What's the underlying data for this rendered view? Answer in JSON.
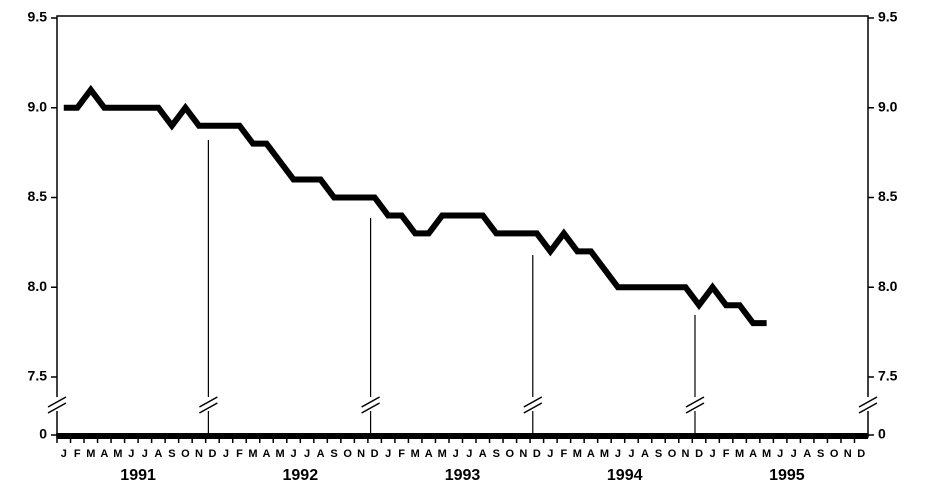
{
  "chart_data": {
    "type": "line",
    "categories": [
      "J",
      "F",
      "M",
      "A",
      "M",
      "J",
      "J",
      "A",
      "S",
      "O",
      "N",
      "D",
      "J",
      "F",
      "M",
      "A",
      "M",
      "J",
      "J",
      "A",
      "S",
      "O",
      "N",
      "D",
      "J",
      "F",
      "M",
      "A",
      "M",
      "J",
      "J",
      "A",
      "S",
      "O",
      "N",
      "D",
      "J",
      "F",
      "M",
      "A",
      "M",
      "J",
      "J",
      "A",
      "S",
      "O",
      "N",
      "D",
      "J",
      "F",
      "M",
      "A",
      "M",
      "J",
      "J",
      "A",
      "S",
      "O",
      "N",
      "D"
    ],
    "years": [
      "1991",
      "1992",
      "1993",
      "1994",
      "1995"
    ],
    "series": [
      {
        "color": "#000000",
        "values": [
          9.0,
          9.0,
          9.1,
          9.0,
          9.0,
          9.0,
          9.0,
          9.0,
          8.9,
          9.0,
          8.9,
          8.9,
          8.9,
          8.9,
          8.8,
          8.8,
          8.7,
          8.6,
          8.6,
          8.6,
          8.5,
          8.5,
          8.5,
          8.5,
          8.4,
          8.4,
          8.3,
          8.3,
          8.4,
          8.4,
          8.4,
          8.4,
          8.3,
          8.3,
          8.3,
          8.3,
          8.2,
          8.3,
          8.2,
          8.2,
          8.1,
          8.0,
          8.0,
          8.0,
          8.0,
          8.0,
          8.0,
          7.9,
          8.0,
          7.9,
          7.9,
          7.8,
          7.8,
          null,
          null,
          null,
          null,
          null,
          null,
          null
        ]
      }
    ],
    "ylim": [
      0,
      9.5
    ],
    "yticks": [
      0,
      7.5,
      {
        "value": 8,
        "label": "8.0"
      },
      8.5,
      {
        "value": 9,
        "label": "9.0"
      },
      9.5
    ],
    "axis_break": true
  }
}
